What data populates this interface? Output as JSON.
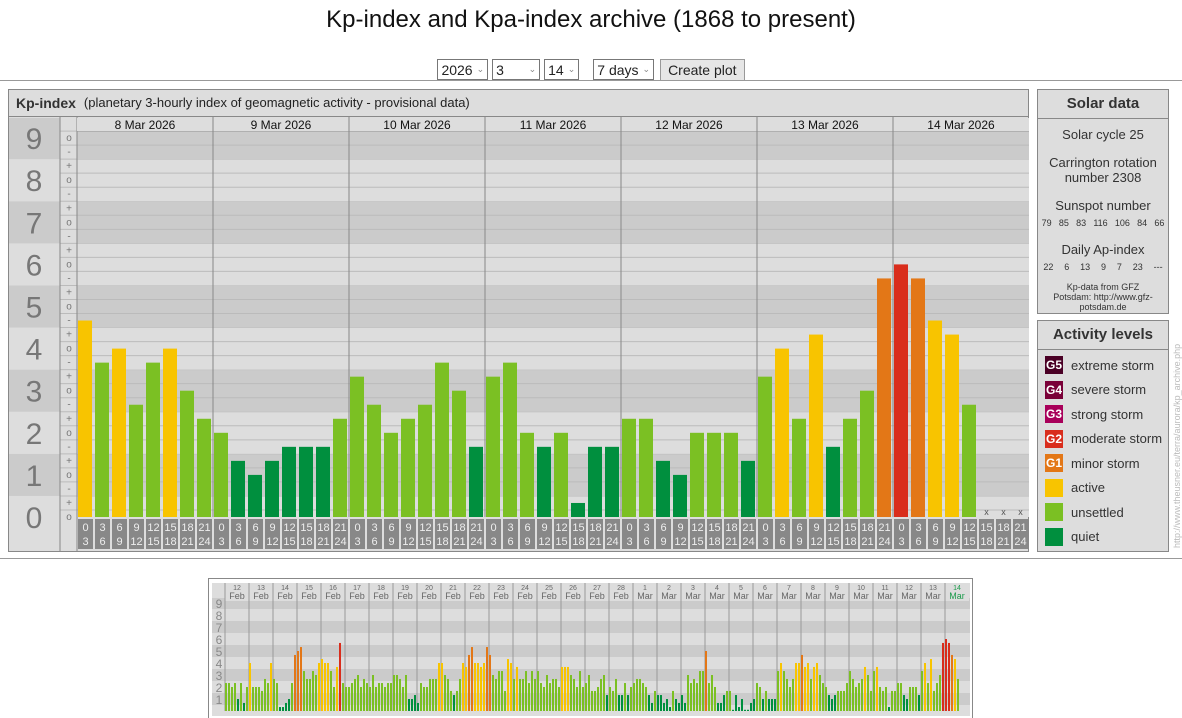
{
  "title": "Kp-index and Kpa-index archive (1868 to present)",
  "controls": {
    "year": "2026",
    "month": "3",
    "day": "14",
    "range": "7 days",
    "button": "Create plot"
  },
  "main": {
    "heading": "Kp-index",
    "subheading": "(planetary 3-hourly index of geomagnetic activity - provisional data)"
  },
  "solar": {
    "title": "Solar data",
    "cycle": "Solar cycle 25",
    "carrington": "Carrington rotation number 2308",
    "sunspot_label": "Sunspot number",
    "sunspots": [
      "79",
      "85",
      "83",
      "116",
      "106",
      "84",
      "66"
    ],
    "ap_label": "Daily Ap-index",
    "ap": [
      "22",
      "6",
      "13",
      "9",
      "7",
      "23",
      "---"
    ],
    "source": "Kp-data from GFZ Potsdam: http://www.gfz-potsdam.de"
  },
  "legend": {
    "title": "Activity levels",
    "items": [
      {
        "code": "G5",
        "label": "extreme storm",
        "color": "#4a0025"
      },
      {
        "code": "G4",
        "label": "severe storm",
        "color": "#7a0038"
      },
      {
        "code": "G3",
        "label": "strong storm",
        "color": "#a8005a"
      },
      {
        "code": "G2",
        "label": "moderate storm",
        "color": "#d92d1c"
      },
      {
        "code": "G1",
        "label": "minor storm",
        "color": "#e37717"
      },
      {
        "code": "",
        "label": "active",
        "color": "#f8c400"
      },
      {
        "code": "",
        "label": "unsettled",
        "color": "#7bc023"
      },
      {
        "code": "",
        "label": "quiet",
        "color": "#008f3e"
      }
    ]
  },
  "credit": "http://www.theusner.eu/terra/aurora/kp_archive.php",
  "chart_data": {
    "type": "bar",
    "title": "Kp-index",
    "ylabel": "Kp",
    "ylim": [
      0,
      9
    ],
    "yticks": [
      "0",
      "1",
      "2",
      "3",
      "4",
      "5",
      "6",
      "7",
      "8",
      "9"
    ],
    "subticks": [
      "-",
      "o",
      "+"
    ],
    "missing_marker": "x",
    "intervals": [
      [
        "0",
        "3"
      ],
      [
        "3",
        "6"
      ],
      [
        "6",
        "9"
      ],
      [
        "9",
        "12"
      ],
      [
        "12",
        "15"
      ],
      [
        "15",
        "18"
      ],
      [
        "18",
        "21"
      ],
      [
        "21",
        "24"
      ]
    ],
    "days": [
      {
        "date": "8 Mar 2026",
        "kp": [
          "5-",
          "4-",
          "4o",
          "3-",
          "4-",
          "4o",
          "3o",
          "2+"
        ]
      },
      {
        "date": "9 Mar 2026",
        "kp": [
          "2o",
          "1+",
          "1o",
          "1+",
          "2-",
          "2-",
          "2-",
          "2+"
        ]
      },
      {
        "date": "10 Mar 2026",
        "kp": [
          "3+",
          "3-",
          "2o",
          "2+",
          "3-",
          "4-",
          "3o",
          "2-"
        ]
      },
      {
        "date": "11 Mar 2026",
        "kp": [
          "3+",
          "4-",
          "2o",
          "2-",
          "2o",
          "0+",
          "2-",
          "2-"
        ]
      },
      {
        "date": "12 Mar 2026",
        "kp": [
          "2+",
          "2+",
          "1+",
          "1o",
          "2o",
          "2o",
          "2o",
          "1+"
        ]
      },
      {
        "date": "13 Mar 2026",
        "kp": [
          "3+",
          "4o",
          "2+",
          "4+",
          "2-",
          "2+",
          "3o",
          "6-"
        ]
      },
      {
        "date": "14 Mar 2026",
        "kp": [
          "6o",
          "6-",
          "5-",
          "4+",
          "3-",
          null,
          null,
          null
        ]
      }
    ],
    "overview": {
      "type": "bar",
      "ylim": [
        0,
        9
      ],
      "yticks": [
        "1",
        "2",
        "3",
        "4",
        "5",
        "6",
        "7",
        "8",
        "9"
      ],
      "days": [
        {
          "d": "12",
          "m": "Feb",
          "kp": [
            2.33,
            2.33,
            2,
            2.33,
            1,
            2.33,
            0.67,
            2
          ]
        },
        {
          "d": "13",
          "m": "Feb",
          "kp": [
            4,
            2,
            2,
            2,
            1.67,
            2.67,
            2.33,
            4
          ]
        },
        {
          "d": "14",
          "m": "Feb",
          "kp": [
            2.67,
            2.33,
            0.33,
            0.33,
            0.67,
            1,
            2.33,
            4.67
          ]
        },
        {
          "d": "15",
          "m": "Feb",
          "kp": [
            5,
            5.33,
            3.33,
            2.67,
            2.67,
            3.33,
            3,
            4
          ]
        },
        {
          "d": "16",
          "m": "Feb",
          "kp": [
            4.33,
            4,
            4,
            3.33,
            2,
            3.67,
            5.67,
            2.33
          ]
        },
        {
          "d": "17",
          "m": "Feb",
          "kp": [
            2,
            2,
            2.33,
            2.67,
            3,
            2,
            2.67,
            2.33
          ]
        },
        {
          "d": "18",
          "m": "Feb",
          "kp": [
            2,
            3,
            2,
            2.33,
            2.33,
            2,
            2.33,
            2.33
          ]
        },
        {
          "d": "19",
          "m": "Feb",
          "kp": [
            3,
            3,
            2.67,
            2,
            3,
            1,
            1,
            1.33
          ]
        },
        {
          "d": "20",
          "m": "Feb",
          "kp": [
            0.67,
            2.33,
            2,
            2,
            2.67,
            2.67,
            2.67,
            4
          ]
        },
        {
          "d": "21",
          "m": "Feb",
          "kp": [
            4,
            3,
            2.67,
            1.67,
            1.33,
            1.67,
            2.67,
            4
          ]
        },
        {
          "d": "22",
          "m": "Feb",
          "kp": [
            3.67,
            4.67,
            5.33,
            4,
            4,
            3.67,
            4,
            5.33
          ]
        },
        {
          "d": "23",
          "m": "Feb",
          "kp": [
            4.67,
            3,
            2.67,
            3.33,
            3.33,
            1.67,
            4.33,
            4
          ]
        },
        {
          "d": "24",
          "m": "Feb",
          "kp": [
            2.67,
            3.67,
            2.67,
            2.67,
            3.33,
            2.33,
            3.33,
            2.67
          ]
        },
        {
          "d": "25",
          "m": "Feb",
          "kp": [
            3.33,
            2.33,
            2,
            3,
            2.33,
            2.67,
            2.67,
            2
          ]
        },
        {
          "d": "26",
          "m": "Feb",
          "kp": [
            3.67,
            3.67,
            3.67,
            3,
            2.67,
            2,
            3.33,
            2
          ]
        },
        {
          "d": "27",
          "m": "Feb",
          "kp": [
            2.33,
            3,
            1.67,
            1.67,
            2,
            2.67,
            3,
            1.33
          ]
        },
        {
          "d": "28",
          "m": "Feb",
          "kp": [
            2,
            1.67,
            2.67,
            1.33,
            1.33,
            2.33,
            1.33,
            2
          ]
        },
        {
          "d": "1",
          "m": "Mar",
          "kp": [
            2.33,
            2.67,
            2.67,
            2.33,
            2,
            1.33,
            0.67,
            1.67
          ]
        },
        {
          "d": "2",
          "m": "Mar",
          "kp": [
            1.33,
            1.33,
            0.67,
            1,
            0.33,
            1.67,
            1,
            0.67
          ]
        },
        {
          "d": "3",
          "m": "Mar",
          "kp": [
            1.33,
            0.67,
            3,
            2.33,
            2.67,
            2.33,
            3.33,
            3.33
          ]
        },
        {
          "d": "4",
          "m": "Mar",
          "kp": [
            5,
            2.33,
            3,
            2,
            0.67,
            0.67,
            1.33,
            1.67
          ]
        },
        {
          "d": "5",
          "m": "Mar",
          "kp": [
            1.67,
            0.1,
            1.33,
            0.33,
            1,
            0.1,
            0.1,
            0.67
          ]
        },
        {
          "d": "6",
          "m": "Mar",
          "kp": [
            1,
            2.33,
            2,
            1,
            1.67,
            1,
            1,
            1
          ]
        },
        {
          "d": "7",
          "m": "Mar",
          "kp": [
            3.33,
            4,
            3.33,
            2.67,
            2,
            2.67,
            4,
            4
          ]
        },
        {
          "d": "8",
          "m": "Mar",
          "kp": [
            4.67,
            3.67,
            4,
            2.67,
            3.67,
            4,
            3,
            2.33
          ]
        },
        {
          "d": "9",
          "m": "Mar",
          "kp": [
            2,
            1.33,
            1,
            1.33,
            1.67,
            1.67,
            1.67,
            2.33
          ]
        },
        {
          "d": "10",
          "m": "Mar",
          "kp": [
            3.33,
            2.67,
            2,
            2.33,
            2.67,
            3.67,
            3,
            1.67
          ]
        },
        {
          "d": "11",
          "m": "Mar",
          "kp": [
            3.33,
            3.67,
            2,
            1.67,
            2,
            0.33,
            1.67,
            1.67
          ]
        },
        {
          "d": "12",
          "m": "Mar",
          "kp": [
            2.33,
            2.33,
            1.33,
            1,
            2,
            2,
            2,
            1.33
          ]
        },
        {
          "d": "13",
          "m": "Mar",
          "kp": [
            3.33,
            4,
            2.33,
            4.33,
            1.67,
            2.33,
            3,
            5.67
          ]
        },
        {
          "d": "14",
          "m": "Mar",
          "kp": [
            6,
            5.67,
            4.67,
            4.33,
            2.67
          ]
        }
      ]
    }
  }
}
